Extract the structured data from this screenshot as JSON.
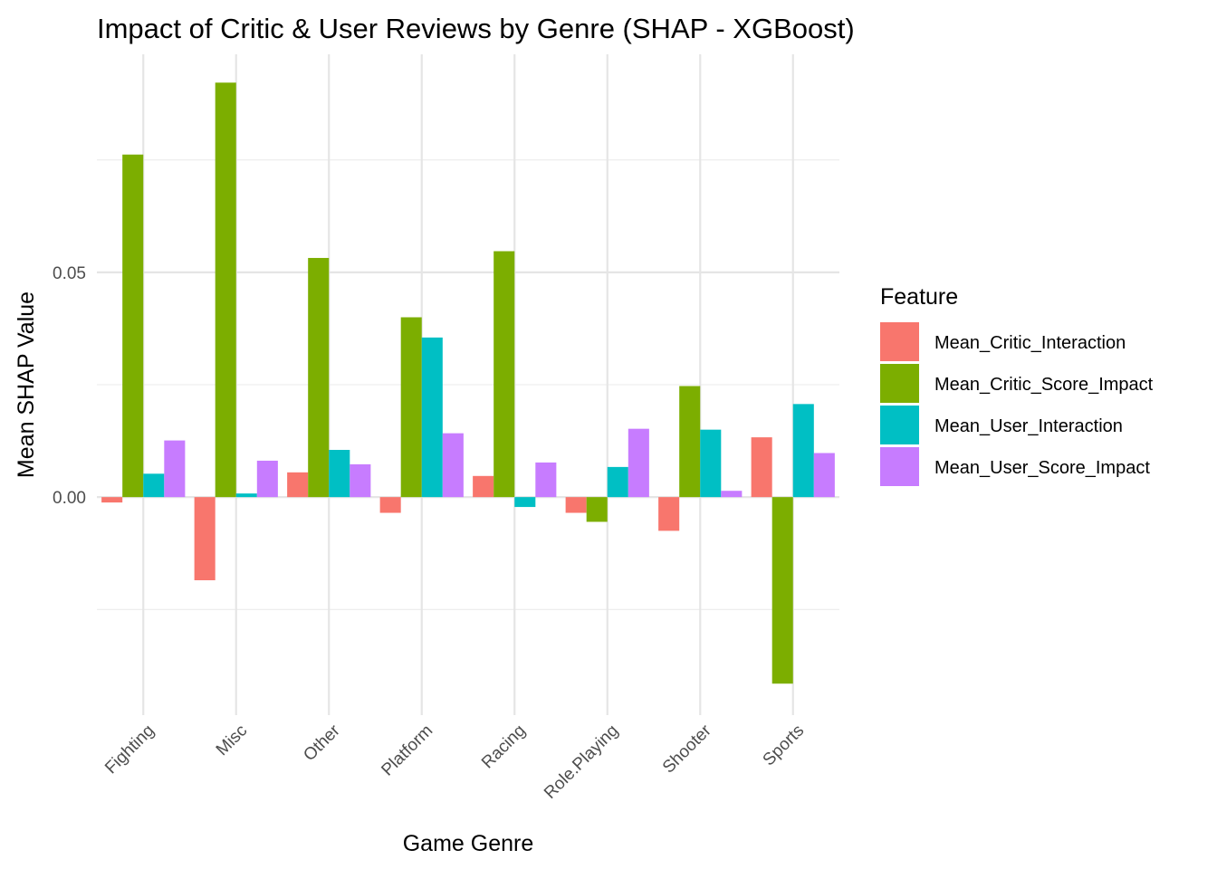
{
  "chart_data": {
    "type": "bar",
    "title": "Impact of Critic & User Reviews by Genre (SHAP - XGBoost)",
    "xlabel": "Game Genre",
    "ylabel": "Mean SHAP Value",
    "categories": [
      "Fighting",
      "Misc",
      "Other",
      "Platform",
      "Racing",
      "Role.Playing",
      "Shooter",
      "Sports"
    ],
    "ylim": [
      -0.0485,
      0.0985
    ],
    "yticks": [
      0.0,
      0.05
    ],
    "ytick_labels": [
      "0.00",
      "0.05"
    ],
    "y_minor_grid": [
      -0.025,
      0.025,
      0.075
    ],
    "grid": true,
    "legend": {
      "title": "Feature",
      "position": "right"
    },
    "series": [
      {
        "name": "Mean_Critic_Interaction",
        "color": "#F8766D",
        "values": [
          -0.0012,
          -0.0185,
          0.0055,
          -0.0035,
          0.0047,
          -0.0035,
          -0.0075,
          0.0133
        ]
      },
      {
        "name": "Mean_Critic_Score_Impact",
        "color": "#7CAE00",
        "values": [
          0.0762,
          0.0922,
          0.0532,
          0.04,
          0.0547,
          -0.0055,
          0.0247,
          -0.0415
        ]
      },
      {
        "name": "Mean_User_Interaction",
        "color": "#00BFC4",
        "values": [
          0.0052,
          0.0008,
          0.0105,
          0.0355,
          -0.0022,
          0.0067,
          0.015,
          0.0207
        ]
      },
      {
        "name": "Mean_User_Score_Impact",
        "color": "#C77CFF",
        "values": [
          0.0126,
          0.0081,
          0.0073,
          0.0142,
          0.0077,
          0.0152,
          0.0014,
          0.0098
        ]
      }
    ]
  }
}
